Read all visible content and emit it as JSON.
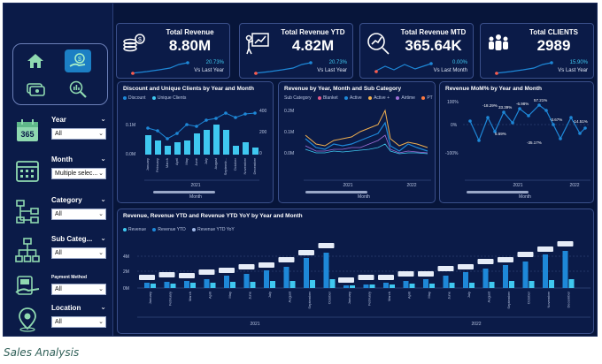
{
  "sidebar": {
    "filters": [
      {
        "label": "Year",
        "value": "All",
        "icon": "calendar-365-icon"
      },
      {
        "label": "Month",
        "value": "Multiple selec...",
        "icon": "calendar-grid-icon"
      },
      {
        "label": "Category",
        "value": "All",
        "icon": "hierarchy-icon"
      },
      {
        "label": "Sub Categ...",
        "value": "All",
        "icon": "sub-hierarchy-icon"
      },
      {
        "label": "Payment Method",
        "value": "All",
        "icon": "payment-icon"
      },
      {
        "label": "Location",
        "value": "All",
        "icon": "location-pin-icon"
      }
    ]
  },
  "kpis": [
    {
      "title": "Total Revenue",
      "value": "8.80M",
      "pct": "20.73%",
      "sub": "Vs Last Year",
      "icon": "money-stack-icon"
    },
    {
      "title": "Total Revenue YTD",
      "value": "4.82M",
      "pct": "20.73%",
      "sub": "Vs Last Year",
      "icon": "presentation-chart-icon"
    },
    {
      "title": "Total Revenue MTD",
      "value": "365.64K",
      "pct": "0.00%",
      "sub": "Vs Last Month",
      "icon": "magnifier-chart-icon"
    },
    {
      "title": "Total CLIENTS",
      "value": "2989",
      "pct": "15.90%",
      "sub": "Vs Last Year",
      "icon": "group-people-icon"
    }
  ],
  "charts": {
    "discount": {
      "title": "Discount and Unique Clients by Year and Month",
      "legend": [
        "Discount",
        "Unique Clients"
      ],
      "ylabels_left": [
        "0.1M",
        "0.0M"
      ],
      "ylabels_right": [
        "400",
        "200",
        "0"
      ],
      "year_label": "2021",
      "xlabel": "Month",
      "months": [
        "January",
        "February",
        "March",
        "April",
        "May",
        "June",
        "July",
        "August",
        "Septemb...",
        "October",
        "November",
        "December"
      ]
    },
    "subcat": {
      "title": "Revenue by Year, Month and Sub Category",
      "legend": [
        "Sub Category",
        "Blanket",
        "Active",
        "Active +",
        "Airtime",
        "PT"
      ],
      "ylabels": [
        "0.2M",
        "0.1M",
        "0.0M"
      ],
      "year_labels": [
        "2021",
        "2022"
      ],
      "xlabel": "Month"
    },
    "mom": {
      "title": "Revenue MoM% by Year and Month",
      "ylabels": [
        "100%",
        "0%",
        "-100%"
      ],
      "annotations": [
        "-18.29%",
        "57.21%",
        "-6.98%",
        "33.39%",
        "-3.67%",
        "5.69%",
        "-35.17%",
        "-14.51%"
      ],
      "year_labels": [
        "2021",
        "2022"
      ],
      "xlabel": "Month"
    },
    "ytd": {
      "title": "Revenue, Revenue YTD and Revenue YTD YoY by Year and Month",
      "legend": [
        "Revenue",
        "Revenue YTD",
        "Revenue YTD YoY"
      ],
      "ylabels": [
        "4M",
        "2M",
        "0M"
      ],
      "year_labels": [
        "2021",
        "2022"
      ],
      "months": [
        "January",
        "February",
        "March",
        "April",
        "May",
        "June",
        "July",
        "August",
        "September",
        "October",
        "January",
        "February",
        "March",
        "April",
        "May",
        "June",
        "July",
        "August",
        "September",
        "October",
        "November",
        "December"
      ]
    }
  },
  "caption": "Sales Analysis",
  "colors": {
    "bg": "#07153a",
    "panel": "#0b1b48",
    "accent": "#1e88d8",
    "light": "#3fc8f0"
  }
}
